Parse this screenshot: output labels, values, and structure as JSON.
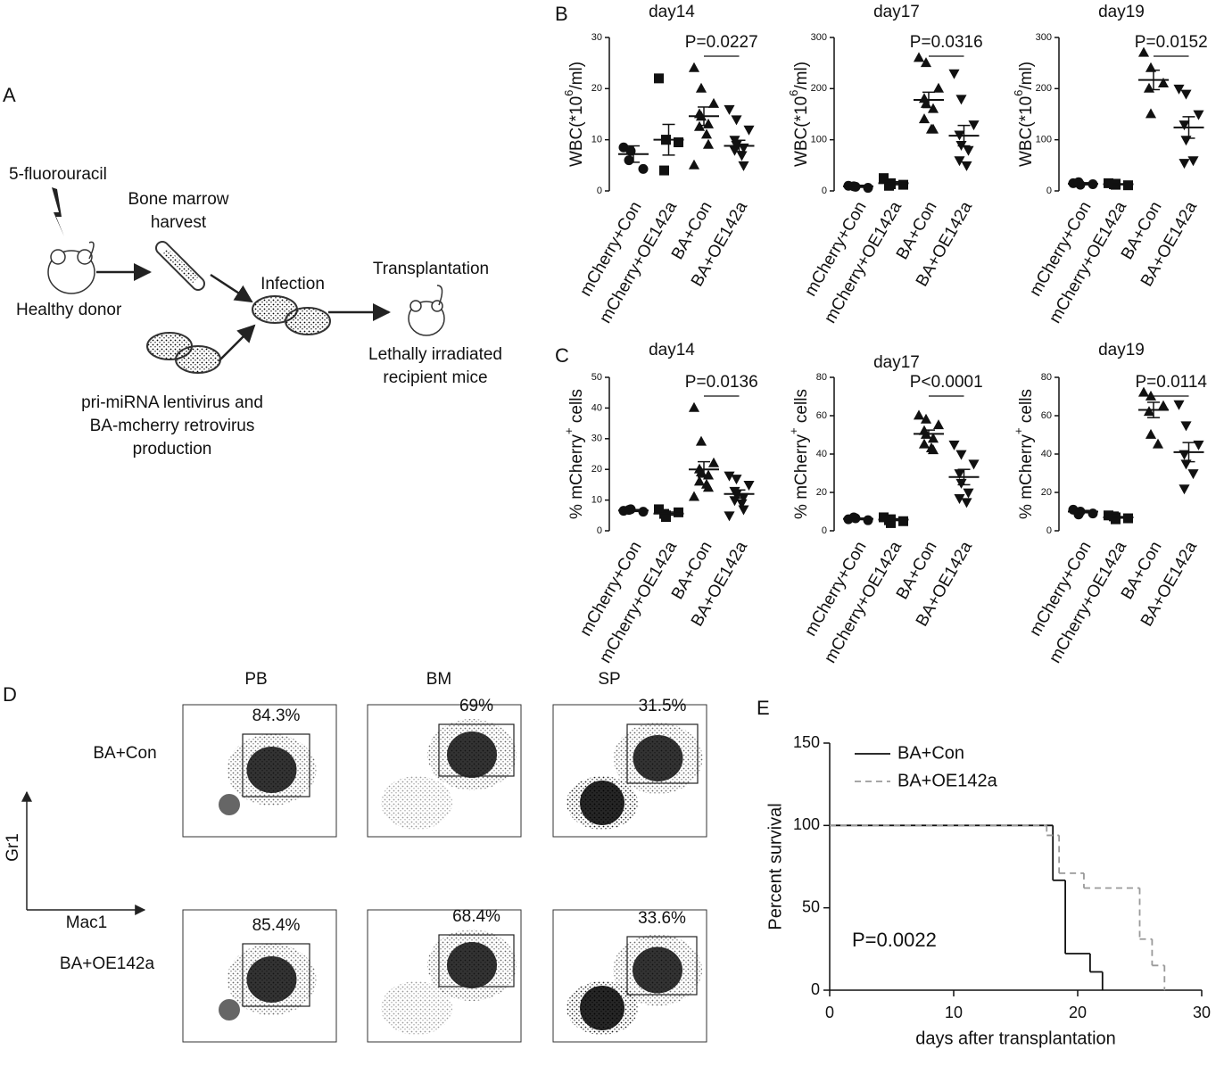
{
  "panel_labels": [
    "A",
    "B",
    "C",
    "D",
    "E"
  ],
  "diagram": {
    "drug": "5-fluorouracil",
    "harvest": [
      "Bone marrow",
      "harvest"
    ],
    "donor": "Healthy donor",
    "infection": "Infection",
    "transplant": "Transplantation",
    "recipient": [
      "Lethally irradiated",
      "recipient mice"
    ],
    "virus": [
      "pri-miRNA lentivirus and",
      "BA-mcherry retrovirus",
      "production"
    ]
  },
  "flow": {
    "columns": [
      "PB",
      "BM",
      "SP"
    ],
    "rows": [
      "BA+Con",
      "BA+OE142a"
    ],
    "y_axis": "Gr1",
    "x_axis": "Mac1",
    "percent": [
      [
        "84.3%",
        "69%",
        "31.5%"
      ],
      [
        "85.4%",
        "68.4%",
        "33.6%"
      ]
    ]
  },
  "chart_data": [
    {
      "type": "dot",
      "title": "day14",
      "ylabel": {
        "text": "WBC(*10",
        "sup": "6",
        "tail": "/ml)"
      },
      "categories": [
        "mCherry+Con",
        "mCherry+OE142a",
        "BA+Con",
        "BA+OE142a"
      ],
      "markers": [
        "circle",
        "square",
        "triangle",
        "triangle-down"
      ],
      "points": [
        [
          8.5,
          7.8,
          4.3,
          6
        ],
        [
          22,
          10,
          9.5,
          4,
          10
        ],
        [
          24,
          20,
          17,
          15,
          14.5,
          13,
          12.5,
          11,
          9,
          5
        ],
        [
          16,
          14,
          12,
          10,
          9,
          8.5,
          8,
          7,
          5
        ]
      ],
      "means": [
        7.2,
        10,
        14.6,
        8.8
      ],
      "sems": [
        1.6,
        3,
        1.8,
        1.1
      ],
      "annotation": "P=0.0227",
      "ylim": [
        0,
        30
      ],
      "yticks": [
        0,
        10,
        20,
        30
      ]
    },
    {
      "type": "dot",
      "title": "day17",
      "ylabel": {
        "text": "WBC(*10",
        "sup": "6",
        "tail": "/ml)"
      },
      "categories": [
        "mCherry+Con",
        "mCherry+OE142a",
        "BA+Con",
        "BA+OE142a"
      ],
      "markers": [
        "circle",
        "square",
        "triangle",
        "triangle-down"
      ],
      "points": [
        [
          10,
          8,
          6,
          9
        ],
        [
          25,
          15,
          12,
          10,
          13
        ],
        [
          260,
          250,
          200,
          180,
          170,
          160,
          140,
          120,
          120
        ],
        [
          230,
          180,
          130,
          110,
          90,
          80,
          60,
          50
        ]
      ],
      "means": [
        9,
        15,
        178,
        108
      ],
      "sems": [
        2,
        3,
        15,
        20
      ],
      "annotation": "P=0.0316",
      "ylim": [
        0,
        300
      ],
      "yticks": [
        0,
        100,
        200,
        300
      ]
    },
    {
      "type": "dot",
      "title": "day19",
      "ylabel": {
        "text": "WBC(*10",
        "sup": "6",
        "tail": "/ml)"
      },
      "categories": [
        "mCherry+Con",
        "mCherry+OE142a",
        "BA+Con",
        "BA+OE142a"
      ],
      "markers": [
        "circle",
        "square",
        "triangle",
        "triangle-down"
      ],
      "points": [
        [
          15,
          12,
          13,
          17
        ],
        [
          15,
          12,
          11,
          13,
          14
        ],
        [
          270,
          240,
          210,
          200,
          150
        ],
        [
          200,
          190,
          150,
          130,
          100,
          60,
          55
        ]
      ],
      "means": [
        14,
        13,
        217,
        124
      ],
      "sems": [
        2,
        1,
        19,
        21
      ],
      "annotation": "P=0.0152",
      "ylim": [
        0,
        300
      ],
      "yticks": [
        0,
        100,
        200,
        300
      ]
    },
    {
      "type": "dot",
      "title": "day14",
      "ylabel": {
        "text": "% mCherry",
        "sup": "+",
        "tail": " cells"
      },
      "categories": [
        "mCherry+Con",
        "mCherry+OE142a",
        "BA+Con",
        "BA+OE142a"
      ],
      "markers": [
        "circle",
        "square",
        "triangle",
        "triangle-down"
      ],
      "points": [
        [
          6.5,
          7,
          6.2,
          6.8
        ],
        [
          7,
          5,
          6,
          5.5,
          4.5
        ],
        [
          40,
          29,
          22,
          20,
          19,
          18,
          16,
          15,
          14,
          11
        ],
        [
          18,
          17,
          15,
          13,
          12,
          11,
          10,
          9,
          7,
          5
        ]
      ],
      "means": [
        6.6,
        5.6,
        20,
        12
      ],
      "sems": [
        0.3,
        0.5,
        2.5,
        1.3
      ],
      "annotation": "P=0.0136",
      "ylim": [
        0,
        50
      ],
      "yticks": [
        0,
        10,
        20,
        30,
        40,
        50
      ]
    },
    {
      "type": "dot",
      "title": "day17",
      "ylabel": {
        "text": "% mCherry",
        "sup": "+",
        "tail": " cells"
      },
      "categories": [
        "mCherry+Con",
        "mCherry+OE142a",
        "BA+Con",
        "BA+OE142a"
      ],
      "markers": [
        "circle",
        "square",
        "triangle",
        "triangle-down"
      ],
      "points": [
        [
          6,
          6.5,
          5.5,
          7
        ],
        [
          7,
          6,
          5,
          5.5,
          4
        ],
        [
          60,
          58,
          55,
          52,
          50,
          48,
          45,
          43,
          42
        ],
        [
          45,
          40,
          35,
          30,
          25,
          20,
          17,
          15
        ]
      ],
      "means": [
        6.2,
        5.8,
        50.5,
        28
      ],
      "sems": [
        0.4,
        0.5,
        2,
        4
      ],
      "annotation": "P<0.0001",
      "ylim": [
        0,
        80
      ],
      "yticks": [
        0,
        20,
        40,
        60,
        80
      ]
    },
    {
      "type": "dot",
      "title": "day19",
      "ylabel": {
        "text": "% mCherry",
        "sup": "+",
        "tail": " cells"
      },
      "categories": [
        "mCherry+Con",
        "mCherry+OE142a",
        "BA+Con",
        "BA+OE142a"
      ],
      "markers": [
        "circle",
        "square",
        "triangle",
        "triangle-down"
      ],
      "points": [
        [
          11,
          10,
          9,
          8.5
        ],
        [
          8,
          7,
          6.5,
          7.5,
          6
        ],
        [
          72,
          70,
          65,
          62,
          50,
          45
        ],
        [
          66,
          55,
          45,
          40,
          35,
          30,
          22
        ]
      ],
      "means": [
        10,
        7,
        63,
        41
      ],
      "sems": [
        0.6,
        0.4,
        4,
        5
      ],
      "annotation": "P=0.0114",
      "ylim": [
        0,
        80
      ],
      "yticks": [
        0,
        20,
        40,
        60,
        80
      ]
    },
    {
      "type": "survival",
      "xlabel": "days after transplantation",
      "ylabel": "Percent survival",
      "annotation": "P=0.0022",
      "legend": "upper left",
      "series": [
        {
          "name": "BA+Con",
          "color": "#111111",
          "dash": false,
          "x": [
            0,
            18,
            19,
            21,
            22
          ],
          "values": [
            100,
            66.7,
            22.2,
            11.1,
            0
          ]
        },
        {
          "name": "BA+OE142a",
          "color": "#999999",
          "dash": true,
          "x": [
            0,
            17.5,
            18.5,
            20.5,
            25,
            26,
            27
          ],
          "values": [
            100,
            94,
            71,
            62,
            31,
            15,
            0
          ]
        }
      ],
      "xlim": [
        0,
        30
      ],
      "xticks": [
        0,
        10,
        20,
        30
      ],
      "ylim": [
        0,
        150
      ],
      "yticks": [
        0,
        50,
        100,
        150
      ]
    }
  ]
}
